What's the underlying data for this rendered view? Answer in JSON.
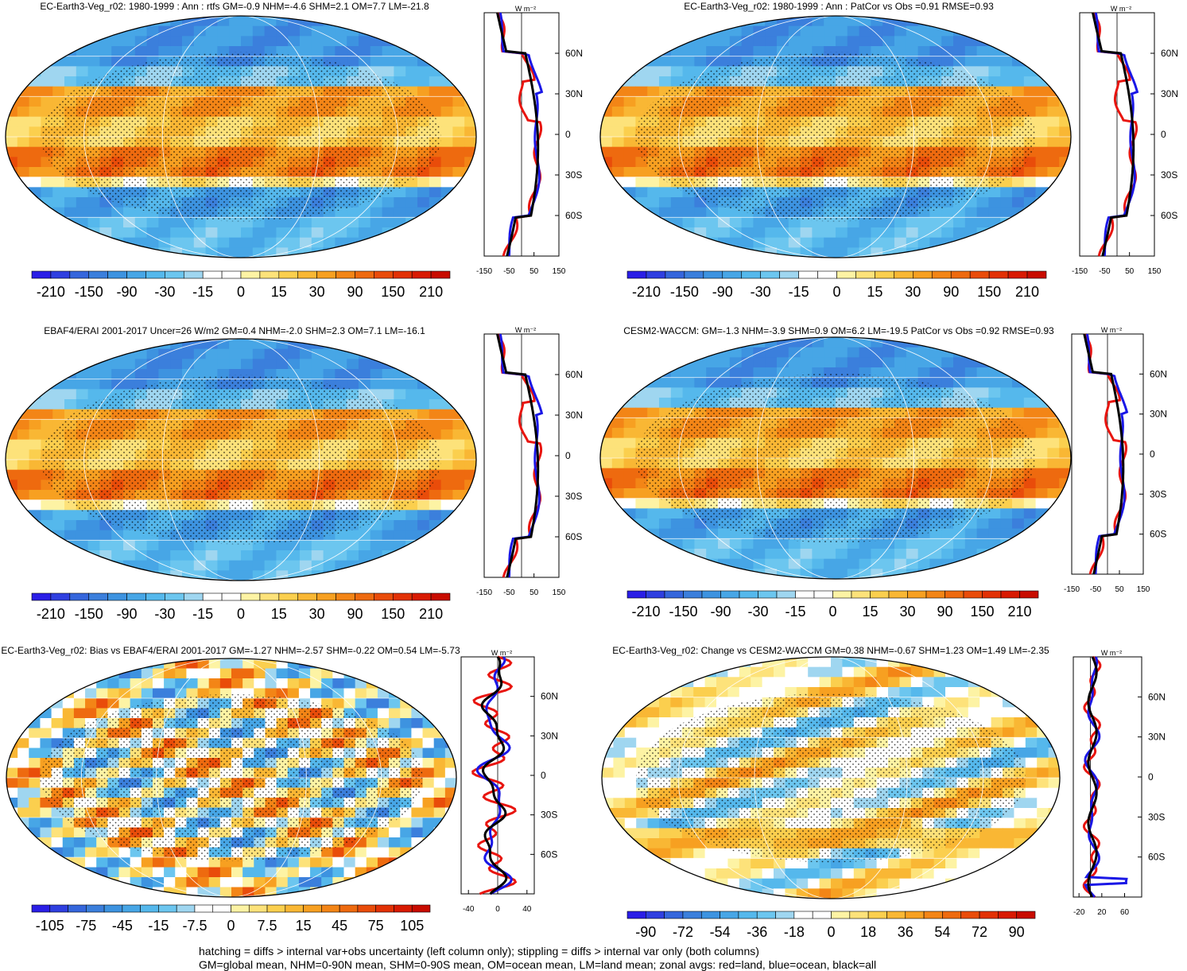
{
  "unit_label": "W m⁻²",
  "lat_ticks": [
    "60N",
    "30N",
    "0",
    "30S",
    "60S"
  ],
  "zonal_series_names": [
    "land",
    "ocean",
    "all"
  ],
  "colors": {
    "land": "#e8150f",
    "ocean": "#1a17e6",
    "all": "#000000",
    "grid": "#ffffff"
  },
  "footnote": {
    "line1": "hatching = diffs > internal var+obs uncertainty (left column only); stippling = diffs > internal var only (both columns)",
    "line2": "GM=global mean, NHM=0-90N mean, SHM=0-90S mean, OM=ocean mean, LM=land mean; zonal avgs: red=land, blue=ocean, black=all"
  },
  "chart_data": [
    {
      "type": "heatmap",
      "title": "EC-Earth3-Veg_r02: 1980-1999 : Ann : rtfs GM=-0.9 NHM=-4.6 SHM=2.1 OM=7.7 LM=-21.8",
      "colorbar_labels": [
        "-210",
        "-150",
        "-90",
        "-30",
        "-15",
        "0",
        "15",
        "30",
        "90",
        "150",
        "210"
      ],
      "zonal_profile": {
        "xlim": [
          -150,
          150
        ],
        "xticks": [
          -150,
          -50,
          50,
          150
        ],
        "xtick_labels": [
          "-150",
          "-50",
          "50",
          "150"
        ]
      },
      "hatching": true
    },
    {
      "type": "heatmap",
      "title": "EC-Earth3-Veg_r02: 1980-1999 : Ann : PatCor vs Obs =0.91 RMSE=0.93",
      "colorbar_labels": [
        "-210",
        "-150",
        "-90",
        "-30",
        "-15",
        "0",
        "15",
        "30",
        "90",
        "150",
        "210"
      ],
      "zonal_profile": {
        "xlim": [
          -150,
          150
        ],
        "xticks": [
          -150,
          -50,
          50,
          150
        ],
        "xtick_labels": [
          "-150",
          "-50",
          "50",
          "150"
        ]
      },
      "hatching": false
    },
    {
      "type": "heatmap",
      "title": "EBAF4/ERAI 2001-2017 Uncer=26 W/m2 GM=0.4 NHM=-2.0 SHM=2.3 OM=7.1 LM=-16.1",
      "colorbar_labels": [
        "-210",
        "-150",
        "-90",
        "-30",
        "-15",
        "0",
        "15",
        "30",
        "90",
        "150",
        "210"
      ],
      "zonal_profile": {
        "xlim": [
          -150,
          150
        ],
        "xticks": [
          -150,
          -50,
          50,
          150
        ],
        "xtick_labels": [
          "-150",
          "-50",
          "50",
          "150"
        ]
      },
      "hatching": true
    },
    {
      "type": "heatmap",
      "title": "CESM2-WACCM: GM=-1.3 NHM=-3.9 SHM=0.9 OM=6.2 LM=-19.5 PatCor vs Obs =0.92 RMSE=0.93",
      "colorbar_labels": [
        "-210",
        "-150",
        "-90",
        "-30",
        "-15",
        "0",
        "15",
        "30",
        "90",
        "150",
        "210"
      ],
      "zonal_profile": {
        "xlim": [
          -150,
          150
        ],
        "xticks": [
          -150,
          -50,
          50,
          150
        ],
        "xtick_labels": [
          "-150",
          "-50",
          "50",
          "150"
        ]
      },
      "hatching": false
    },
    {
      "type": "heatmap",
      "title": "EC-Earth3-Veg_r02: Bias vs EBAF4/ERAI 2001-2017 GM=-1.27 NHM=-2.57 SHM=-0.22 OM=0.54 LM=-5.73",
      "colorbar_labels": [
        "-105",
        "-75",
        "-45",
        "-15",
        "-7.5",
        "0",
        "7.5",
        "15",
        "45",
        "75",
        "105"
      ],
      "zonal_profile": {
        "xlim": [
          -50,
          50
        ],
        "xticks": [
          -40,
          0,
          40
        ],
        "xtick_labels": [
          "-40",
          "0",
          "40"
        ]
      },
      "hatching": true
    },
    {
      "type": "heatmap",
      "title": "EC-Earth3-Veg_r02: Change vs CESM2-WACCM GM=0.38 NHM=-0.67 SHM=1.23 OM=1.49 LM=-2.35",
      "colorbar_labels": [
        "-90",
        "-72",
        "-54",
        "-36",
        "-18",
        "0",
        "18",
        "36",
        "54",
        "72",
        "90"
      ],
      "zonal_profile": {
        "xlim": [
          -30,
          90
        ],
        "xticks": [
          -20,
          20,
          60
        ],
        "xtick_labels": [
          "-20",
          "20",
          "60"
        ]
      },
      "hatching": false
    }
  ]
}
